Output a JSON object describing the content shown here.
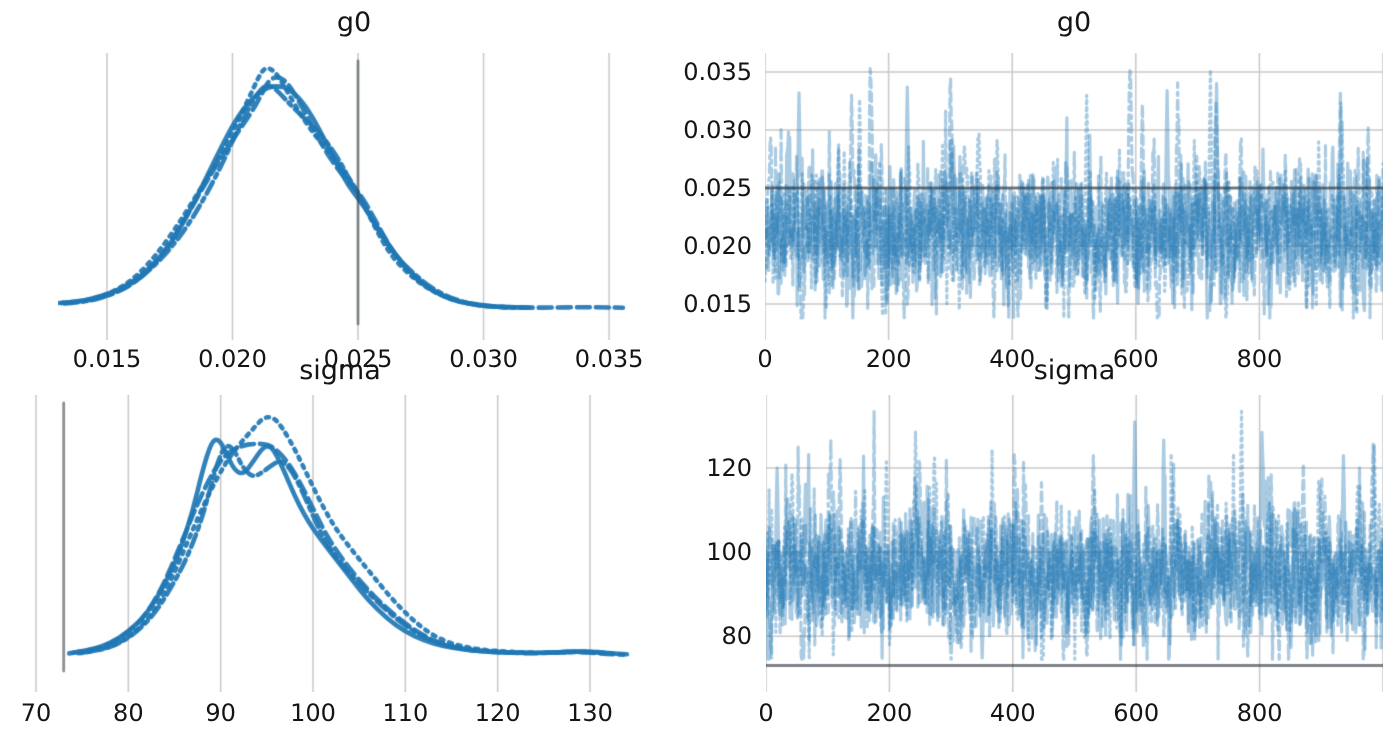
{
  "figure": {
    "kind": "mcmc-trace-figure",
    "background_color": "#ffffff",
    "accent_color": "#1f77b4",
    "trace_rgba": "rgba(31,119,180,0.38)",
    "kde_rgba": "rgba(31,119,180,0.92)",
    "grid_color": "#c8c8c8",
    "kde_ref_rgba": "rgba(60,70,78,0.60)",
    "trace_ref_rgba": "rgba(45,55,65,0.62)",
    "text_color": "#141414"
  },
  "chart_data": [
    {
      "id": "g0-density",
      "type": "kde",
      "title": "g0",
      "xlabel_implied": "g0 value",
      "xlim": [
        0.01305,
        0.03663
      ],
      "x_tick_values": [
        0.015,
        0.02,
        0.025,
        0.03,
        0.035
      ],
      "x_tick_labels": [
        "0.015",
        "0.020",
        "0.025",
        "0.030",
        "0.035"
      ],
      "ref_value": 0.025,
      "peak_at": 0.0214,
      "shapes": {
        "main": [
          [
            0.0132,
            0.03
          ],
          [
            0.0139,
            0.036
          ],
          [
            0.0146,
            0.052
          ],
          [
            0.0153,
            0.078
          ],
          [
            0.016,
            0.12
          ],
          [
            0.0167,
            0.185
          ],
          [
            0.0174,
            0.275
          ],
          [
            0.0181,
            0.39
          ],
          [
            0.0188,
            0.525
          ],
          [
            0.0195,
            0.665
          ],
          [
            0.0201,
            0.79
          ],
          [
            0.0207,
            0.9
          ],
          [
            0.0211,
            0.965
          ],
          [
            0.0214,
            1.0
          ],
          [
            0.0218,
            0.99
          ],
          [
            0.0222,
            0.95
          ],
          [
            0.0227,
            0.88
          ],
          [
            0.0232,
            0.8
          ],
          [
            0.0237,
            0.715
          ],
          [
            0.0242,
            0.63
          ],
          [
            0.0246,
            0.56
          ],
          [
            0.025,
            0.5
          ],
          [
            0.0255,
            0.405
          ],
          [
            0.026,
            0.31
          ],
          [
            0.0265,
            0.228
          ],
          [
            0.0271,
            0.158
          ],
          [
            0.0277,
            0.102
          ],
          [
            0.0284,
            0.06
          ],
          [
            0.0291,
            0.034
          ],
          [
            0.0299,
            0.019
          ],
          [
            0.0308,
            0.012
          ],
          [
            0.0318,
            0.01
          ],
          [
            0.0328,
            0.011
          ],
          [
            0.0338,
            0.013
          ],
          [
            0.0347,
            0.012
          ],
          [
            0.0355,
            0.01
          ]
        ]
      },
      "chains": [
        {
          "shape": "main",
          "linestyle": "solid",
          "dx": 0,
          "scale": 1.0,
          "phase": 0.0,
          "xmax": 0.0326
        },
        {
          "shape": "main",
          "linestyle": "dashed",
          "dx": 5e-05,
          "scale": 0.985,
          "phase": 1.7,
          "xmax": 0.0355
        },
        {
          "shape": "main",
          "linestyle": "dotted",
          "dx": -8e-05,
          "scale": 1.01,
          "phase": 3.1,
          "xmax": 0.0318
        },
        {
          "shape": "main",
          "linestyle": "dashdot",
          "dx": 0.00012,
          "scale": 0.968,
          "phase": 4.6,
          "xmax": 0.031
        }
      ]
    },
    {
      "id": "g0-trace",
      "type": "trace",
      "title": "g0",
      "xlim": [
        0,
        1000
      ],
      "x_tick_values": [
        0,
        200,
        400,
        600,
        800
      ],
      "x_tick_labels": [
        "0",
        "200",
        "400",
        "600",
        "800"
      ],
      "x_grid_values": [
        0,
        200,
        400,
        600,
        800,
        1000
      ],
      "ylim": [
        0.0119,
        0.03664
      ],
      "y_tick_values": [
        0.015,
        0.02,
        0.025,
        0.03,
        0.035
      ],
      "y_tick_labels": [
        "0.015",
        "0.020",
        "0.025",
        "0.030",
        "0.035"
      ],
      "ref_value": 0.025,
      "n_samples": 1000,
      "n_chains": 4,
      "mean": 0.0213,
      "sd": 0.0026,
      "clip": [
        0.0138,
        0.0353
      ],
      "seed": 11,
      "spikes": [
        {
          "x": 55,
          "value": 0.0332,
          "chain": 0
        },
        {
          "x": 140,
          "value": 0.033,
          "chain": 1
        },
        {
          "x": 190,
          "value": 0.014,
          "chain": 2
        },
        {
          "x": 230,
          "value": 0.0337,
          "chain": 0
        },
        {
          "x": 370,
          "value": 0.0139,
          "chain": 3
        },
        {
          "x": 520,
          "value": 0.033,
          "chain": 2
        },
        {
          "x": 610,
          "value": 0.0322,
          "chain": 1
        },
        {
          "x": 650,
          "value": 0.0334,
          "chain": 0
        },
        {
          "x": 720,
          "value": 0.0352,
          "chain": 2
        },
        {
          "x": 730,
          "value": 0.034,
          "chain": 0
        },
        {
          "x": 930,
          "value": 0.0333,
          "chain": 1
        },
        {
          "x": 975,
          "value": 0.0302,
          "chain": 3
        }
      ]
    },
    {
      "id": "sigma-density",
      "type": "kde",
      "title": "sigma",
      "xlabel_implied": "sigma value",
      "xlim": [
        69.35,
        136.5
      ],
      "x_tick_values": [
        70,
        80,
        90,
        100,
        110,
        120,
        130
      ],
      "x_tick_labels": [
        "70",
        "80",
        "90",
        "100",
        "110",
        "120",
        "130"
      ],
      "ref_value": 73,
      "peak_at": 93,
      "shapes": {
        "bimodal": [
          [
            74,
            0.018
          ],
          [
            76,
            0.03
          ],
          [
            78,
            0.055
          ],
          [
            80,
            0.105
          ],
          [
            82,
            0.185
          ],
          [
            84,
            0.32
          ],
          [
            85.5,
            0.45
          ],
          [
            87,
            0.62
          ],
          [
            88,
            0.76
          ],
          [
            89,
            0.875
          ],
          [
            89.8,
            0.9
          ],
          [
            90.6,
            0.87
          ],
          [
            91.5,
            0.815
          ],
          [
            92.5,
            0.8
          ],
          [
            93.5,
            0.835
          ],
          [
            94.5,
            0.865
          ],
          [
            95.3,
            0.86
          ],
          [
            96,
            0.83
          ],
          [
            97,
            0.77
          ],
          [
            98,
            0.7
          ],
          [
            99,
            0.63
          ],
          [
            100,
            0.555
          ],
          [
            101.5,
            0.46
          ],
          [
            103,
            0.375
          ],
          [
            104.5,
            0.3
          ],
          [
            106,
            0.235
          ],
          [
            108,
            0.165
          ],
          [
            110,
            0.11
          ],
          [
            112,
            0.072
          ],
          [
            114,
            0.047
          ],
          [
            116,
            0.032
          ],
          [
            118,
            0.024
          ],
          [
            120,
            0.02
          ],
          [
            122,
            0.017
          ],
          [
            124,
            0.017
          ],
          [
            126,
            0.02
          ],
          [
            128,
            0.024
          ],
          [
            130,
            0.022
          ],
          [
            132,
            0.016
          ],
          [
            134,
            0.011
          ]
        ],
        "smooth": [
          [
            74,
            0.015
          ],
          [
            76,
            0.026
          ],
          [
            78,
            0.05
          ],
          [
            80,
            0.095
          ],
          [
            82,
            0.17
          ],
          [
            84,
            0.29
          ],
          [
            86,
            0.46
          ],
          [
            88,
            0.64
          ],
          [
            90,
            0.8
          ],
          [
            91.5,
            0.885
          ],
          [
            93,
            0.935
          ],
          [
            94,
            0.945
          ],
          [
            95,
            0.925
          ],
          [
            96,
            0.885
          ],
          [
            97.5,
            0.81
          ],
          [
            99,
            0.72
          ],
          [
            100.5,
            0.62
          ],
          [
            102,
            0.52
          ],
          [
            104,
            0.41
          ],
          [
            106,
            0.31
          ],
          [
            108,
            0.22
          ],
          [
            110,
            0.15
          ],
          [
            112,
            0.095
          ],
          [
            114,
            0.06
          ],
          [
            116,
            0.04
          ],
          [
            118,
            0.028
          ],
          [
            120,
            0.022
          ],
          [
            122,
            0.018
          ],
          [
            124,
            0.016
          ],
          [
            126,
            0.018
          ],
          [
            128,
            0.022
          ],
          [
            130,
            0.02
          ],
          [
            132,
            0.014
          ],
          [
            134,
            0.01
          ]
        ]
      },
      "chains": [
        {
          "shape": "bimodal",
          "linestyle": "solid",
          "dx": 0,
          "scale": 1.0,
          "phase": 0.3,
          "xmax": 134.2
        },
        {
          "shape": "smooth",
          "linestyle": "dashed",
          "dx": -0.4,
          "scale": 0.99,
          "phase": 1.9,
          "xmax": 134.4
        },
        {
          "shape": "smooth",
          "linestyle": "dotted",
          "dx": 0.6,
          "scale": 1.06,
          "phase": 3.4,
          "xmax": 132.5
        },
        {
          "shape": "bimodal",
          "linestyle": "dashdot",
          "dx": 0.9,
          "scale": 0.965,
          "phase": 5.1,
          "xmax": 130.5
        }
      ]
    },
    {
      "id": "sigma-trace",
      "type": "trace",
      "title": "sigma",
      "xlim": [
        0,
        1000
      ],
      "x_tick_values": [
        0,
        200,
        400,
        600,
        800
      ],
      "x_tick_labels": [
        "0",
        "200",
        "400",
        "600",
        "800"
      ],
      "x_grid_values": [
        0,
        200,
        400,
        600,
        800,
        1000
      ],
      "ylim": [
        66.7,
        137.4
      ],
      "y_tick_values": [
        80,
        100,
        120
      ],
      "y_tick_labels": [
        "80",
        "100",
        "120"
      ],
      "ref_value": 73,
      "n_samples": 1000,
      "n_chains": 4,
      "mean": 95.2,
      "sd": 7.0,
      "clip": [
        74.5,
        133.5
      ],
      "seed": 29,
      "spikes": [
        {
          "x": 18,
          "value": 120,
          "chain": 0
        },
        {
          "x": 120,
          "value": 122,
          "chain": 1
        },
        {
          "x": 195,
          "value": 121.5,
          "chain": 2
        },
        {
          "x": 350,
          "value": 74.8,
          "chain": 0
        },
        {
          "x": 420,
          "value": 116,
          "chain": 3
        },
        {
          "x": 530,
          "value": 123,
          "chain": 1
        },
        {
          "x": 597,
          "value": 131,
          "chain": 0
        },
        {
          "x": 770,
          "value": 133.5,
          "chain": 2
        },
        {
          "x": 780,
          "value": 75.2,
          "chain": 3
        },
        {
          "x": 870,
          "value": 121,
          "chain": 1
        },
        {
          "x": 935,
          "value": 123,
          "chain": 0
        },
        {
          "x": 985,
          "value": 125.5,
          "chain": 2
        }
      ]
    }
  ]
}
